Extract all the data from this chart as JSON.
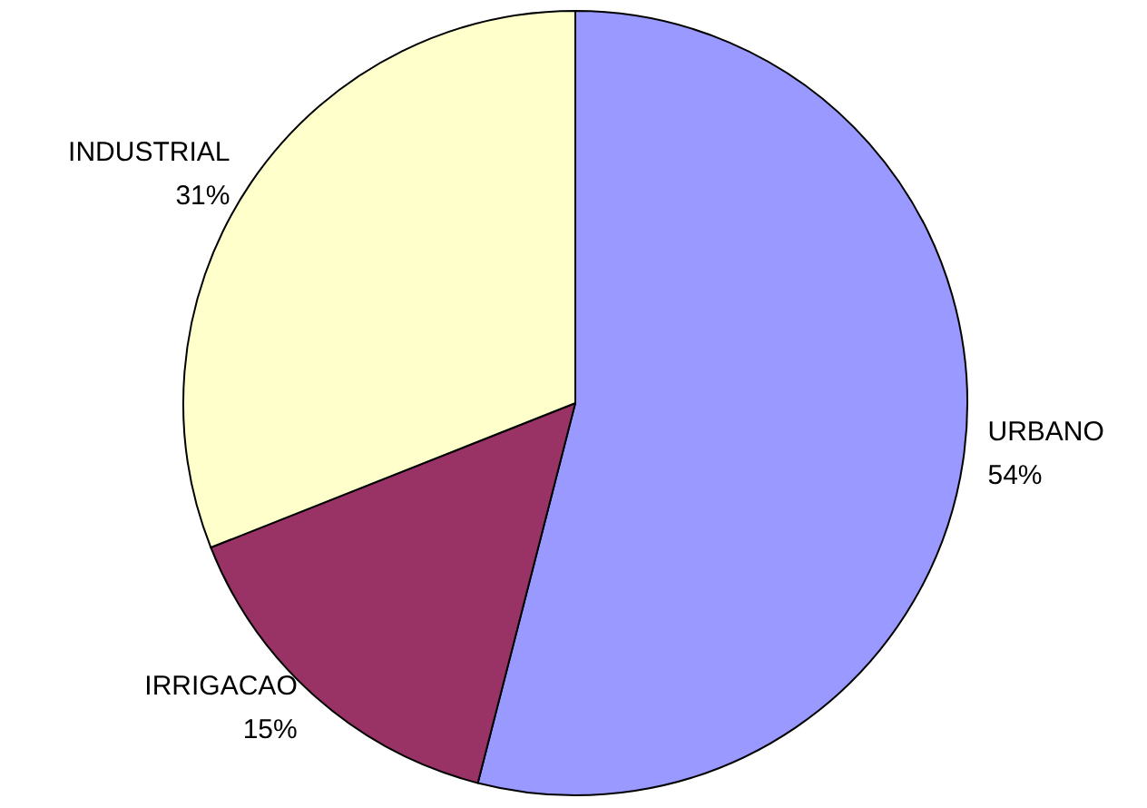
{
  "chart_data": {
    "type": "pie",
    "categories": [
      "URBANO",
      "IRRIGACAO",
      "INDUSTRIAL"
    ],
    "values": [
      54,
      15,
      31
    ],
    "colors": [
      "#9999ff",
      "#993366",
      "#ffffcc"
    ],
    "value_labels": [
      "54%",
      "15%",
      "31%"
    ],
    "legend": false
  }
}
